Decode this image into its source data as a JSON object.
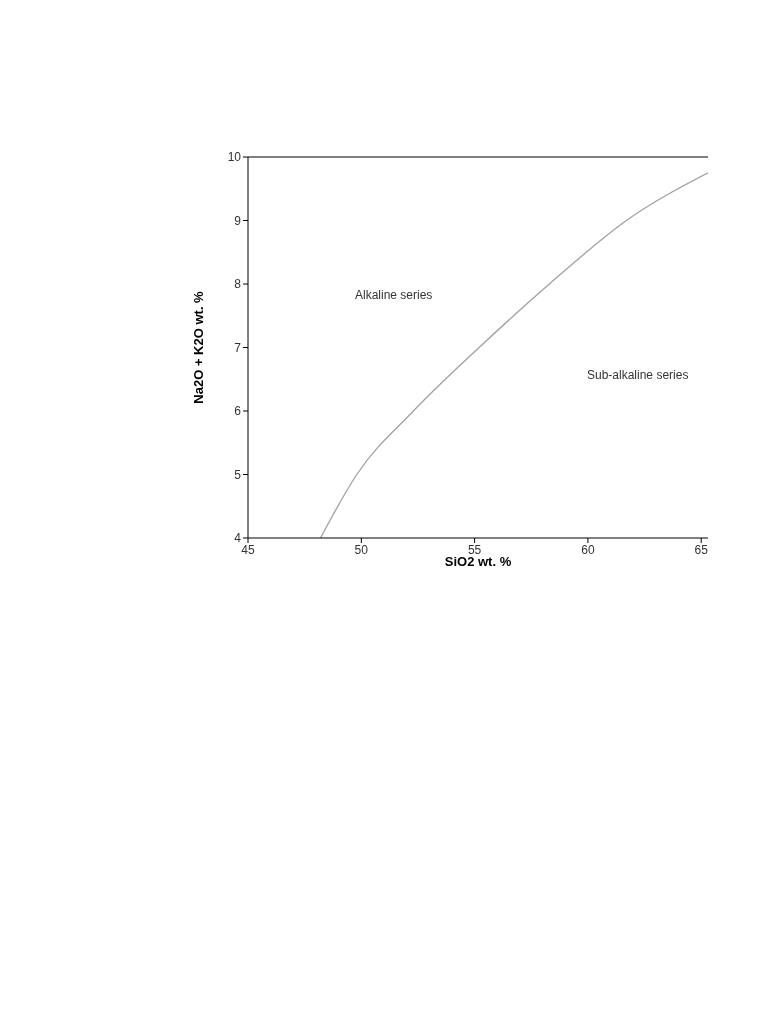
{
  "chart_data": {
    "type": "line",
    "xlabel": "SiO2 wt. %",
    "ylabel": "Na2O + K2O wt. %",
    "x": [
      48.2,
      49.8,
      52.3,
      55.2,
      58.3,
      61.7,
      65.3
    ],
    "series": [
      {
        "color": "#a0a0a0",
        "values": [
          4,
          5,
          6,
          7,
          8,
          9,
          9.75
        ]
      }
    ],
    "xlim": [
      45,
      65.3
    ],
    "xticks": [
      45,
      50,
      55,
      60,
      65
    ],
    "ylim": [
      4,
      10
    ],
    "yticks": [
      4,
      5,
      6,
      7,
      8,
      9,
      10
    ],
    "grid": false,
    "marker": "none",
    "line_style": "solid",
    "annotations": [
      "Alkaline series",
      "Sub-alkaline series"
    ]
  }
}
